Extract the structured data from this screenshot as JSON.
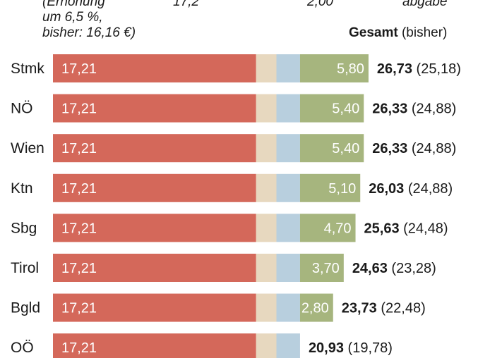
{
  "header": {
    "note_line1": "(Erhöhung",
    "note_line2": "um 6,5 %,",
    "note_line3": "bisher: 16,16 €)",
    "col_value_1": "17,2",
    "col_value_2": "2,00",
    "col_value_3": "abgabe",
    "total_label_bold": "Gesamt",
    "total_label_rest": " (bisher)"
  },
  "colors": {
    "segment_red": "#d4685a",
    "segment_beige": "#e7d8bf",
    "segment_blue": "#b8cfde",
    "segment_green": "#a6b57e"
  },
  "chart_data": {
    "type": "bar",
    "orientation": "horizontal",
    "stacked": true,
    "categories": [
      "Stmk",
      "NÖ",
      "Wien",
      "Ktn",
      "Sbg",
      "Tirol",
      "Bgld",
      "OÖ"
    ],
    "series": [
      {
        "values": [
          17.21,
          17.21,
          17.21,
          17.21,
          17.21,
          17.21,
          17.21,
          17.21
        ],
        "labels": [
          "17,21",
          "17,21",
          "17,21",
          "17,21",
          "17,21",
          "17,21",
          "17,21",
          "17,21"
        ]
      },
      {
        "values": [
          1.72,
          1.72,
          1.72,
          1.72,
          1.72,
          1.72,
          1.72,
          1.72
        ]
      },
      {
        "values": [
          2.0,
          2.0,
          2.0,
          2.0,
          2.0,
          2.0,
          2.0,
          2.0
        ]
      },
      {
        "values": [
          5.8,
          5.4,
          5.4,
          5.1,
          4.7,
          3.7,
          2.8,
          0
        ],
        "labels": [
          "5,80",
          "5,40",
          "5,40",
          "5,10",
          "4,70",
          "3,70",
          "2,80",
          ""
        ]
      }
    ],
    "totals": [
      "26,73",
      "26,33",
      "26,33",
      "26,03",
      "25,63",
      "24,63",
      "23,73",
      "20,93"
    ],
    "previous": [
      "(25,18)",
      "(24,88)",
      "(24,88)",
      "(24,88)",
      "(24,48)",
      "(23,28)",
      "(22,48)",
      "(19,78)"
    ]
  }
}
